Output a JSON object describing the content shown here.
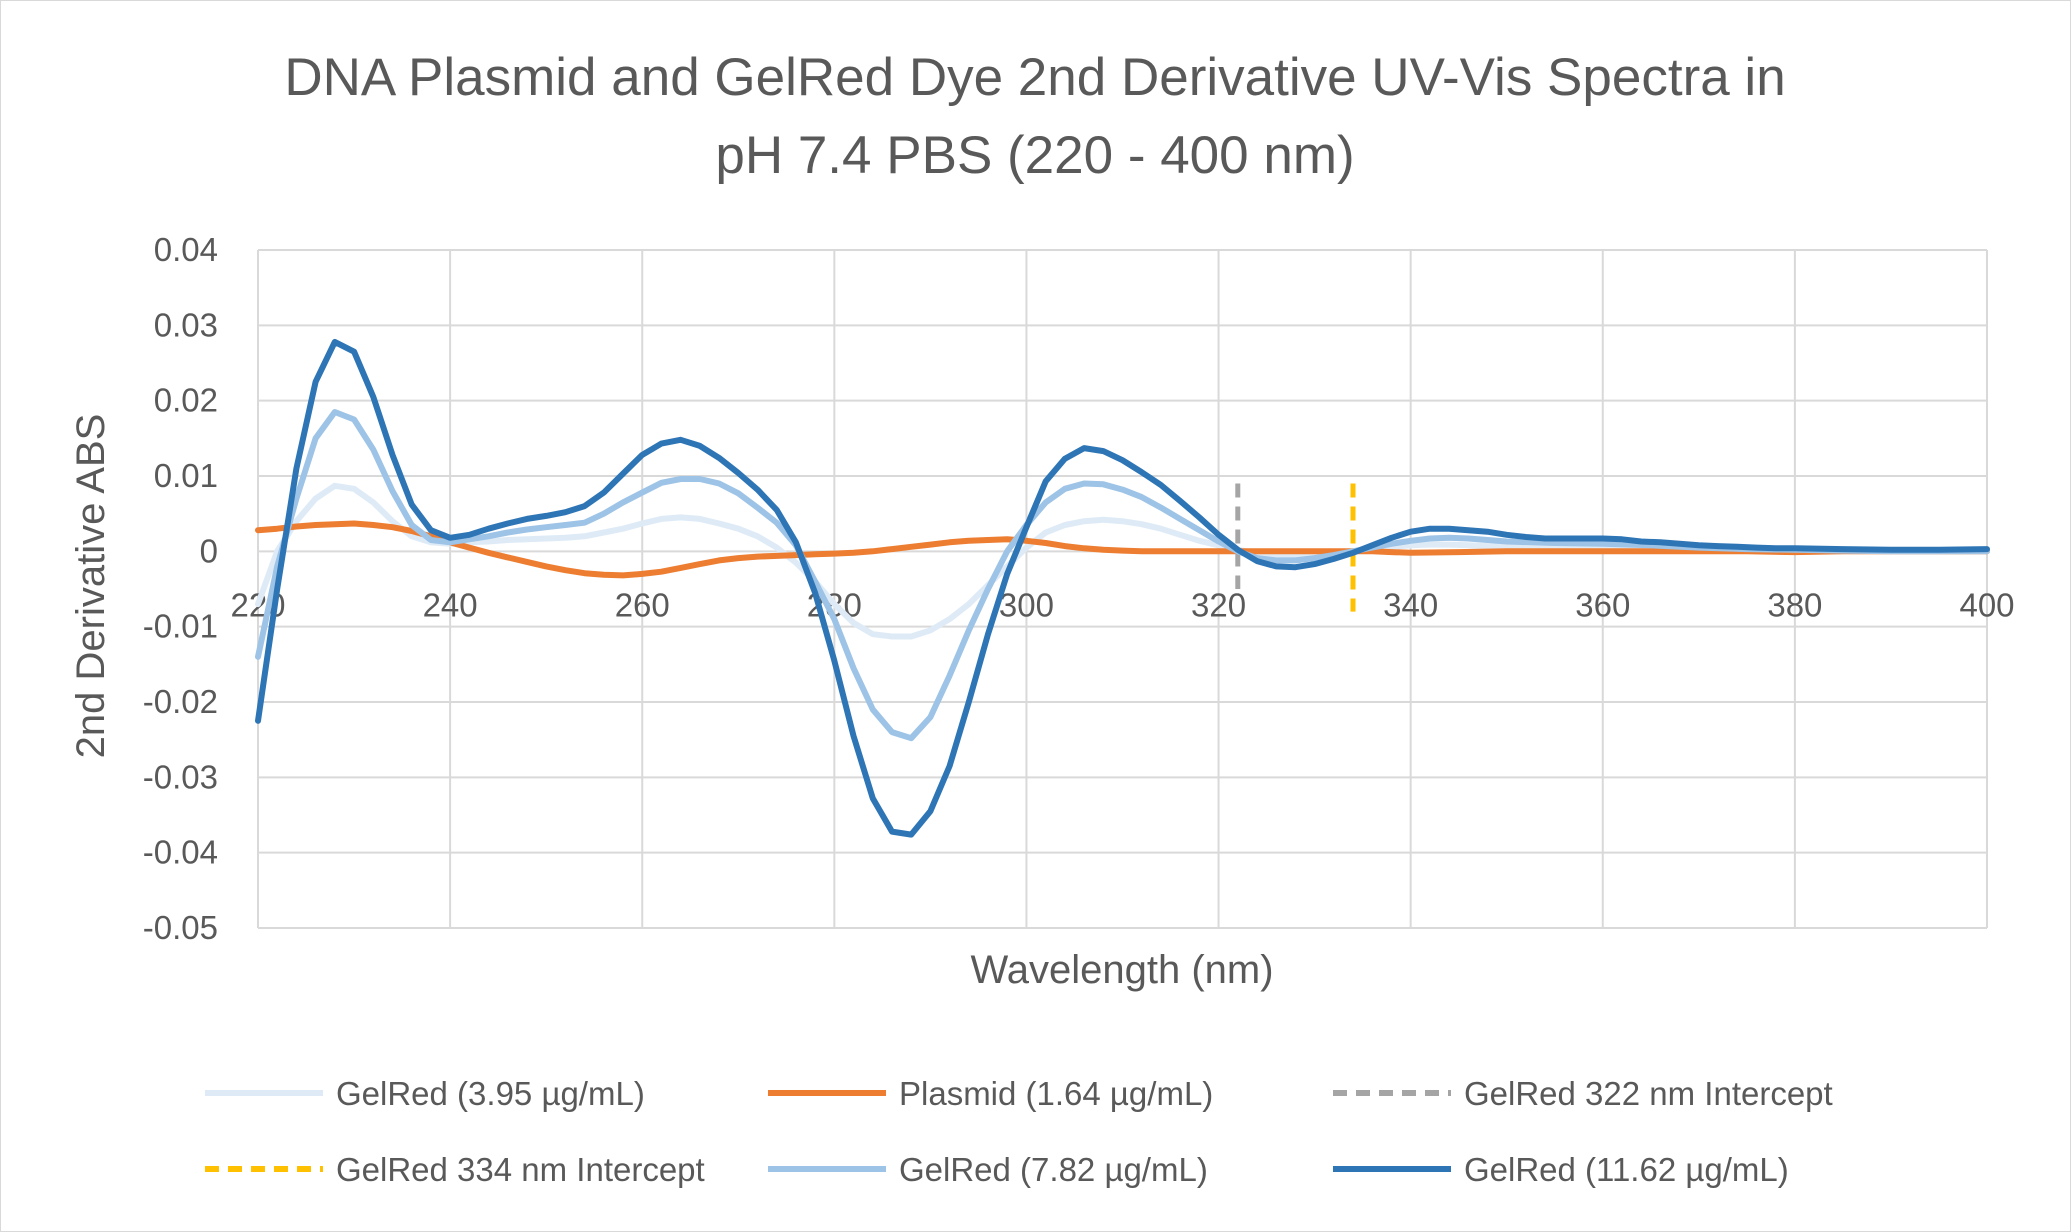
{
  "chart_data": {
    "type": "line",
    "title_lines": [
      "DNA Plasmid and GelRed Dye 2nd Derivative UV-Vis Spectra in",
      "pH 7.4 PBS (220 - 400 nm)"
    ],
    "xlabel": "Wavelength (nm)",
    "ylabel": "2nd Derivative ABS",
    "xlim": [
      220,
      400
    ],
    "ylim": [
      -0.05,
      0.04
    ],
    "x_ticks": [
      220,
      240,
      260,
      280,
      300,
      320,
      340,
      360,
      380,
      400
    ],
    "y_ticks": [
      0.04,
      0.03,
      0.02,
      0.01,
      0,
      -0.01,
      -0.02,
      -0.03,
      -0.04,
      -0.05
    ],
    "x_tick_labels": [
      "220",
      "240",
      "260",
      "280",
      "300",
      "320",
      "340",
      "360",
      "380",
      "400"
    ],
    "y_tick_labels": [
      "0.04",
      "0.03",
      "0.02",
      "0.01",
      "0",
      "-0.01",
      "-0.02",
      "-0.03",
      "-0.04",
      "-0.05"
    ],
    "grid": true,
    "legend_position": "bottom",
    "series": [
      {
        "name": "GelRed (3.95 µg/mL)",
        "color": "#deebf7",
        "style": "solid",
        "x": [
          220,
          222,
          224,
          226,
          228,
          230,
          232,
          234,
          236,
          238,
          240,
          242,
          244,
          246,
          248,
          250,
          252,
          254,
          256,
          258,
          260,
          262,
          264,
          266,
          268,
          270,
          272,
          274,
          276,
          278,
          280,
          282,
          284,
          286,
          288,
          290,
          292,
          294,
          296,
          298,
          300,
          302,
          304,
          306,
          308,
          310,
          312,
          314,
          316,
          318,
          320,
          322,
          324,
          326,
          328,
          330,
          332,
          334,
          336,
          338,
          340,
          342,
          344,
          346,
          348,
          350,
          355,
          360,
          365,
          370,
          375,
          380,
          385,
          390,
          395,
          400
        ],
        "y": [
          -0.007,
          0.0,
          0.004,
          0.007,
          0.0087,
          0.0083,
          0.0065,
          0.004,
          0.002,
          0.0012,
          0.001,
          0.0012,
          0.0013,
          0.0015,
          0.0016,
          0.0017,
          0.0018,
          0.002,
          0.0025,
          0.003,
          0.0037,
          0.0043,
          0.0045,
          0.0043,
          0.0037,
          0.003,
          0.002,
          0.0005,
          -0.0015,
          -0.004,
          -0.007,
          -0.0095,
          -0.011,
          -0.0113,
          -0.0113,
          -0.0105,
          -0.009,
          -0.007,
          -0.0045,
          -0.002,
          0.0005,
          0.0025,
          0.0035,
          0.004,
          0.0042,
          0.004,
          0.0036,
          0.003,
          0.0022,
          0.0014,
          0.0008,
          0.0002,
          -0.0002,
          -0.0004,
          -0.0005,
          -0.0004,
          -0.0002,
          0.0,
          0.0003,
          0.0006,
          0.0008,
          0.0009,
          0.0009,
          0.0008,
          0.0007,
          0.0006,
          0.0005,
          0.0004,
          0.0003,
          0.0002,
          0.0001,
          0.0001,
          0.0,
          0.0,
          0.0,
          0.0
        ]
      },
      {
        "name": "Plasmid (1.64 µg/mL)",
        "color": "#ed7d31",
        "style": "solid",
        "x": [
          220,
          222,
          224,
          226,
          228,
          230,
          232,
          234,
          236,
          238,
          240,
          242,
          244,
          246,
          248,
          250,
          252,
          254,
          256,
          258,
          260,
          262,
          264,
          266,
          268,
          270,
          272,
          274,
          276,
          278,
          280,
          282,
          284,
          286,
          288,
          290,
          292,
          294,
          296,
          298,
          300,
          302,
          304,
          306,
          308,
          310,
          312,
          314,
          316,
          318,
          320,
          322,
          324,
          326,
          328,
          330,
          332,
          334,
          336,
          338,
          340,
          345,
          350,
          355,
          360,
          365,
          370,
          375,
          380,
          385,
          390,
          395,
          400
        ],
        "y": [
          0.0028,
          0.003,
          0.0033,
          0.0035,
          0.0036,
          0.0037,
          0.0035,
          0.0032,
          0.0027,
          0.002,
          0.0012,
          0.0005,
          -0.0002,
          -0.0008,
          -0.0014,
          -0.002,
          -0.0025,
          -0.0029,
          -0.0031,
          -0.0032,
          -0.003,
          -0.0027,
          -0.0022,
          -0.0017,
          -0.0012,
          -0.0009,
          -0.0007,
          -0.0006,
          -0.0005,
          -0.0004,
          -0.0003,
          -0.0002,
          0.0,
          0.0003,
          0.0006,
          0.0009,
          0.0012,
          0.0014,
          0.0015,
          0.0016,
          0.0014,
          0.0011,
          0.0007,
          0.0004,
          0.0002,
          0.0001,
          0.0,
          0.0,
          0.0,
          0.0,
          0.0,
          0.0,
          0.0,
          0.0,
          0.0,
          0.0,
          0.0,
          0.0,
          0.0,
          -0.0001,
          -0.0002,
          -0.0001,
          0.0,
          0.0,
          0.0,
          0.0,
          0.0,
          0.0,
          -0.0001,
          0.0,
          0.0,
          0.0,
          0.0
        ]
      },
      {
        "name": "GelRed 322 nm Intercept",
        "color": "#a5a5a5",
        "style": "dashed",
        "x": [
          322,
          322
        ],
        "y": [
          0.009,
          -0.005
        ]
      },
      {
        "name": "GelRed 334 nm Intercept",
        "color": "#ffc000",
        "style": "dashed",
        "x": [
          334,
          334
        ],
        "y": [
          0.009,
          -0.008
        ]
      },
      {
        "name": "GelRed (7.82 µg/mL)",
        "color": "#9dc3e6",
        "style": "solid",
        "x": [
          220,
          222,
          224,
          226,
          228,
          230,
          232,
          234,
          236,
          238,
          240,
          242,
          244,
          246,
          248,
          250,
          252,
          254,
          256,
          258,
          260,
          262,
          264,
          266,
          268,
          270,
          272,
          274,
          276,
          278,
          280,
          282,
          284,
          286,
          288,
          290,
          292,
          294,
          296,
          298,
          300,
          302,
          304,
          306,
          308,
          310,
          312,
          314,
          316,
          318,
          320,
          322,
          324,
          326,
          328,
          330,
          332,
          334,
          336,
          338,
          340,
          342,
          344,
          346,
          348,
          350,
          355,
          360,
          365,
          370,
          375,
          380,
          385,
          390,
          395,
          400
        ],
        "y": [
          -0.014,
          -0.002,
          0.007,
          0.015,
          0.0185,
          0.0175,
          0.0135,
          0.008,
          0.0035,
          0.0015,
          0.0012,
          0.0016,
          0.002,
          0.0025,
          0.0029,
          0.0032,
          0.0035,
          0.0038,
          0.005,
          0.0065,
          0.0078,
          0.0091,
          0.0096,
          0.0096,
          0.009,
          0.0077,
          0.0058,
          0.0038,
          0.0008,
          -0.004,
          -0.009,
          -0.0155,
          -0.021,
          -0.024,
          -0.0248,
          -0.022,
          -0.0165,
          -0.0105,
          -0.005,
          0.0,
          0.0035,
          0.0065,
          0.0083,
          0.009,
          0.0089,
          0.0082,
          0.0072,
          0.0058,
          0.0043,
          0.0028,
          0.0013,
          0.0,
          -0.0009,
          -0.0012,
          -0.0012,
          -0.0009,
          -0.0005,
          0.0,
          0.0005,
          0.001,
          0.0014,
          0.0017,
          0.0018,
          0.0017,
          0.0015,
          0.0013,
          0.0011,
          0.001,
          0.0008,
          0.0005,
          0.0003,
          0.0002,
          0.0001,
          0.0,
          0.0,
          0.0
        ]
      },
      {
        "name": "GelRed (11.62 µg/mL)",
        "color": "#2e75b6",
        "style": "solid",
        "x": [
          220,
          222,
          224,
          226,
          228,
          230,
          232,
          234,
          236,
          238,
          240,
          242,
          244,
          246,
          248,
          250,
          252,
          254,
          256,
          258,
          260,
          262,
          264,
          266,
          268,
          270,
          272,
          274,
          276,
          278,
          280,
          282,
          284,
          286,
          288,
          290,
          292,
          294,
          296,
          298,
          300,
          302,
          304,
          306,
          308,
          310,
          312,
          314,
          316,
          318,
          320,
          322,
          324,
          326,
          328,
          330,
          332,
          334,
          336,
          338,
          340,
          342,
          344,
          346,
          348,
          350,
          352,
          354,
          356,
          358,
          360,
          362,
          364,
          366,
          368,
          370,
          372,
          374,
          376,
          378,
          380,
          385,
          390,
          395,
          400
        ],
        "y": [
          -0.0225,
          -0.005,
          0.011,
          0.0225,
          0.0278,
          0.0265,
          0.0205,
          0.0128,
          0.0062,
          0.0028,
          0.0018,
          0.0022,
          0.003,
          0.0037,
          0.0043,
          0.0047,
          0.0052,
          0.006,
          0.0078,
          0.0103,
          0.0128,
          0.0143,
          0.0148,
          0.014,
          0.0124,
          0.0104,
          0.0082,
          0.0055,
          0.0012,
          -0.0055,
          -0.0145,
          -0.0245,
          -0.0328,
          -0.0372,
          -0.0376,
          -0.0345,
          -0.0285,
          -0.02,
          -0.011,
          -0.003,
          0.0032,
          0.0093,
          0.0123,
          0.0137,
          0.0133,
          0.0121,
          0.0105,
          0.0088,
          0.0067,
          0.0045,
          0.0022,
          0.0002,
          -0.0013,
          -0.002,
          -0.0021,
          -0.0017,
          -0.001,
          -0.0002,
          0.0008,
          0.0018,
          0.0026,
          0.003,
          0.003,
          0.0028,
          0.0026,
          0.0022,
          0.0019,
          0.0017,
          0.0017,
          0.0017,
          0.0017,
          0.0016,
          0.0013,
          0.0012,
          0.001,
          0.0008,
          0.0007,
          0.0006,
          0.0005,
          0.0004,
          0.0004,
          0.0003,
          0.0002,
          0.0002,
          0.0003
        ]
      }
    ]
  }
}
